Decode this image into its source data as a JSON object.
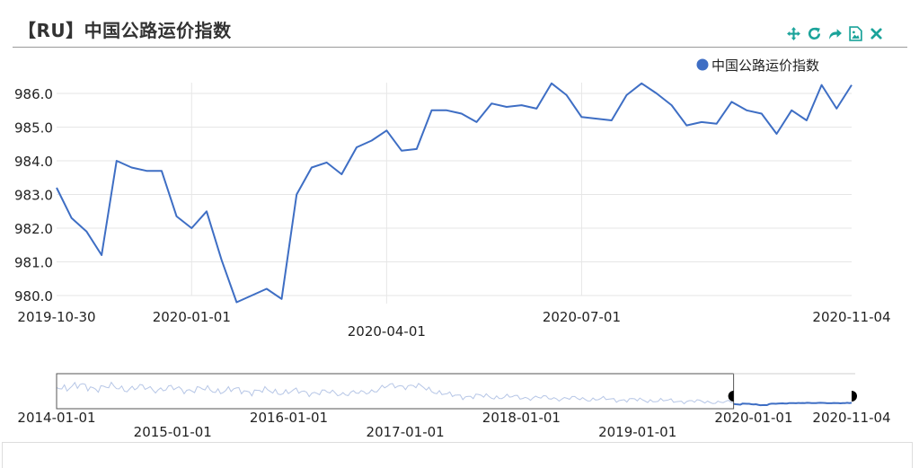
{
  "page": {
    "title": "【RU】中国公路运价指数"
  },
  "toolbar": {
    "icons": [
      "move-icon",
      "refresh-icon",
      "share-icon",
      "save-image-icon",
      "close-icon"
    ],
    "color": "#1aa39a"
  },
  "chart_data": {
    "type": "line",
    "series": [
      {
        "name": "中国公路运价指数",
        "color": "#3e6ec4",
        "x": [
          "2019-10-30",
          "2019-11-06",
          "2019-11-13",
          "2019-11-20",
          "2019-11-27",
          "2019-12-04",
          "2019-12-11",
          "2019-12-18",
          "2019-12-25",
          "2020-01-01",
          "2020-01-08",
          "2020-01-15",
          "2020-01-22",
          "2020-02-05",
          "2020-02-12",
          "2020-02-19",
          "2020-02-26",
          "2020-03-04",
          "2020-03-11",
          "2020-03-18",
          "2020-03-25",
          "2020-04-01",
          "2020-04-08",
          "2020-04-15",
          "2020-04-22",
          "2020-04-29",
          "2020-05-06",
          "2020-05-13",
          "2020-05-20",
          "2020-05-27",
          "2020-06-03",
          "2020-06-10",
          "2020-06-17",
          "2020-06-24",
          "2020-07-01",
          "2020-07-08",
          "2020-07-15",
          "2020-07-22",
          "2020-07-29",
          "2020-08-05",
          "2020-08-12",
          "2020-08-19",
          "2020-08-26",
          "2020-09-02",
          "2020-09-09",
          "2020-09-16",
          "2020-09-23",
          "2020-09-30",
          "2020-10-07",
          "2020-10-14",
          "2020-10-21",
          "2020-10-28",
          "2020-11-04"
        ],
        "values": [
          983.2,
          982.3,
          981.9,
          981.2,
          984.0,
          983.8,
          983.7,
          983.7,
          982.35,
          982.0,
          982.5,
          981.05,
          979.8,
          980.2,
          979.9,
          983.0,
          983.8,
          983.95,
          983.6,
          984.4,
          984.6,
          984.9,
          984.3,
          984.35,
          985.5,
          985.5,
          985.4,
          985.15,
          985.7,
          985.6,
          985.65,
          985.55,
          986.3,
          985.95,
          985.3,
          985.25,
          985.2,
          985.95,
          986.3,
          986.0,
          985.65,
          985.05,
          985.15,
          985.1,
          985.75,
          985.5,
          985.4,
          984.8,
          985.5,
          985.2,
          986.25,
          985.55,
          986.25
        ]
      }
    ],
    "yticks": [
      "980.0",
      "981.0",
      "982.0",
      "983.0",
      "984.0",
      "985.0",
      "986.0"
    ],
    "ylim": [
      980.0,
      986.0
    ],
    "xticks_row1": [
      "2019-10-30",
      "2020-01-01",
      "2020-07-01",
      "2020-11-04"
    ],
    "xticks_row2": [
      "2020-04-01"
    ],
    "grid": true,
    "legend": "top-right",
    "navigator": {
      "ticks_row1": [
        "2014-01-01",
        "2016-01-01",
        "2018-01-01",
        "2020-01-01",
        "2020-11-04"
      ],
      "ticks_row2": [
        "2015-01-01",
        "2017-01-01",
        "2019-01-01"
      ],
      "range_start": "2019-10-30",
      "range_end": "2020-11-04"
    }
  }
}
